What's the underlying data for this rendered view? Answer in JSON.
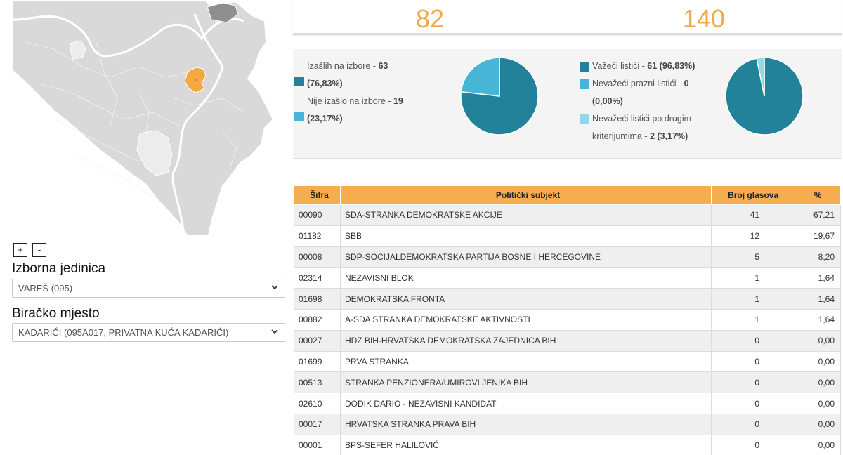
{
  "map": {
    "zoom_in_label": "+",
    "zoom_out_label": "-",
    "colors": {
      "land": "#d9d9d9",
      "border": "#ffffff",
      "highlight": "#f5a742",
      "light_region": "#ececec"
    }
  },
  "constituency": {
    "label": "Izborna jedinica",
    "selected": "VAREŠ (095)"
  },
  "polling_station": {
    "label": "Biračko mjesto",
    "selected": "KADARIĆI (095A017, PRIVATNA KUĆA KADARIĆI)"
  },
  "top_numbers": {
    "left": "82",
    "right": "140"
  },
  "turnout": {
    "items": [
      {
        "label": "Izašlih na izbore - ",
        "value": "63",
        "pct": "(76,83%)",
        "color": "#21829a",
        "fraction": 0.7683
      },
      {
        "label": "Nije izašlo na izbore - ",
        "value": "19",
        "pct": "(23,17%)",
        "color": "#47b6d6",
        "fraction": 0.2317
      }
    ]
  },
  "ballots": {
    "items": [
      {
        "label": "Važeći listići - ",
        "value": "61",
        "pct": "(96,83%)",
        "color": "#21829a",
        "fraction": 0.9683
      },
      {
        "label": "Nevažeći prazni listići - ",
        "value": "0",
        "pct": "(0,00%)",
        "color": "#47b6d6",
        "fraction": 0.0
      },
      {
        "label": "Nevažeći listići po drugim kriterijumima - ",
        "value": "2",
        "pct": "(3,17%)",
        "color": "#93d6ea",
        "fraction": 0.0317
      }
    ]
  },
  "results": {
    "headers": {
      "code": "Šifra",
      "name": "Politički subjekt",
      "votes": "Broj glasova",
      "pct": "%"
    },
    "rows": [
      {
        "code": "00090",
        "name": "SDA-STRANKA DEMOKRATSKE AKCIJE",
        "votes": "41",
        "pct": "67,21"
      },
      {
        "code": "01182",
        "name": "SBB",
        "votes": "12",
        "pct": "19,67"
      },
      {
        "code": "00008",
        "name": "SDP-SOCIJALDEMOKRATSKA PARTIJA BOSNE I HERCEGOVINE",
        "votes": "5",
        "pct": "8,20"
      },
      {
        "code": "02314",
        "name": "NEZAVISNI BLOK",
        "votes": "1",
        "pct": "1,64"
      },
      {
        "code": "01698",
        "name": "DEMOKRATSKA FRONTA",
        "votes": "1",
        "pct": "1,64"
      },
      {
        "code": "00882",
        "name": "A-SDA STRANKA DEMOKRATSKE AKTIVNOSTI",
        "votes": "1",
        "pct": "1,64"
      },
      {
        "code": "00027",
        "name": "HDZ BIH-HRVATSKA DEMOKRATSKA ZAJEDNICA BIH",
        "votes": "0",
        "pct": "0,00"
      },
      {
        "code": "01699",
        "name": "PRVA STRANKA",
        "votes": "0",
        "pct": "0,00"
      },
      {
        "code": "00513",
        "name": "STRANKA PENZIONERA/UMIROVLJENIKA BIH",
        "votes": "0",
        "pct": "0,00"
      },
      {
        "code": "02610",
        "name": "DODIK DARIO - NEZAVISNI KANDIDAT",
        "votes": "0",
        "pct": "0,00"
      },
      {
        "code": "00017",
        "name": "HRVATSKA STRANKA PRAVA BIH",
        "votes": "0",
        "pct": "0,00"
      },
      {
        "code": "00001",
        "name": "BPS-SEFER HALILOVIĆ",
        "votes": "0",
        "pct": "0,00"
      }
    ]
  }
}
